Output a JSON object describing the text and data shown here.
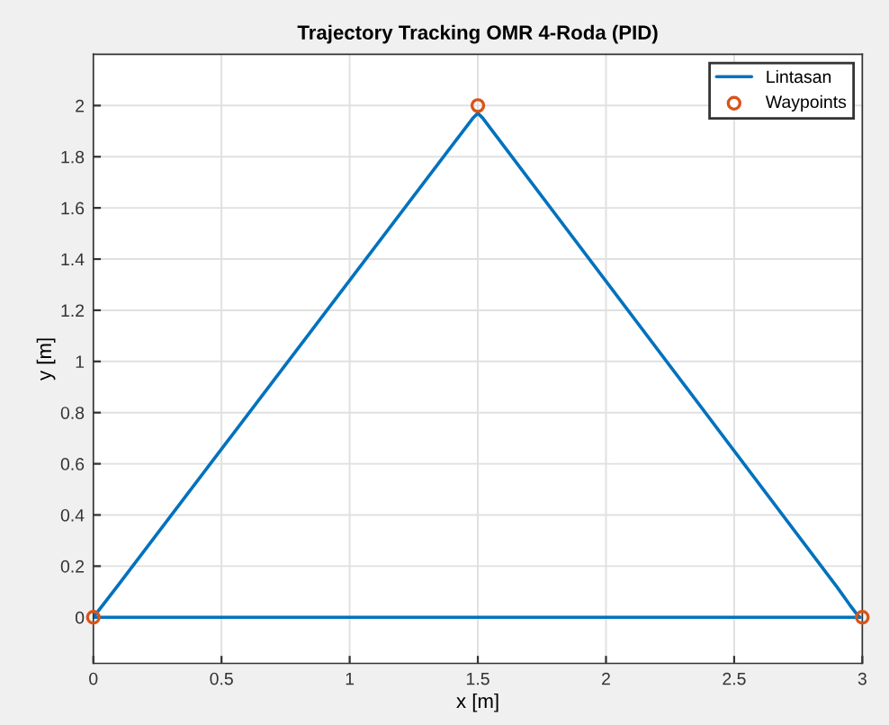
{
  "chart_data": {
    "type": "line",
    "title": "Trajectory Tracking OMR 4-Roda (PID)",
    "xlabel": "x [m]",
    "ylabel": "y [m]",
    "series": [
      {
        "name": "Lintasan",
        "type": "line",
        "color": "#0072bd",
        "marker": "none",
        "x": [
          0,
          0.1,
          1.48,
          1.5,
          1.52,
          2.9,
          2.95,
          2.98,
          2.99
        ],
        "values": [
          0,
          0.13,
          1.95,
          1.97,
          1.95,
          0.12,
          0.05,
          0.01,
          0
        ]
      },
      {
        "type": "line",
        "color": "#0072bd",
        "marker": "none",
        "x": [
          0,
          2.99
        ],
        "values": [
          0,
          0
        ]
      },
      {
        "name": "Waypoints",
        "type": "scatter",
        "color": "#d95319",
        "marker": "circle",
        "x": [
          0,
          1.5,
          3
        ],
        "values": [
          0,
          2,
          0
        ]
      }
    ],
    "xlim": [
      0,
      3
    ],
    "ylim": [
      -0.18,
      2.2
    ],
    "xticks": [
      0,
      0.5,
      1,
      1.5,
      2,
      2.5,
      3
    ],
    "yticks": [
      0,
      0.2,
      0.4,
      0.6,
      0.8,
      1,
      1.2,
      1.4,
      1.6,
      1.8,
      2
    ],
    "grid": true,
    "legend": "top right"
  }
}
